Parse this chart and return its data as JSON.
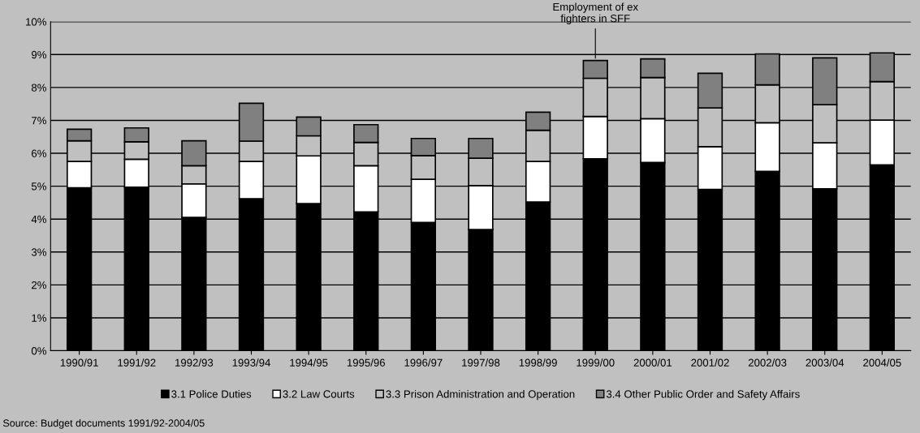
{
  "chart_data": {
    "type": "bar",
    "stacked": true,
    "categories": [
      "1990/91",
      "1991/92",
      "1992/93",
      "1993/94",
      "1994/95",
      "1995/96",
      "1996/97",
      "1997/98",
      "1998/99",
      "1999/00",
      "2000/01",
      "2001/02",
      "2002/03",
      "2003/04",
      "2004/05"
    ],
    "series": [
      {
        "name": "3.1 Police Duties",
        "color": "#000000",
        "values": [
          4.95,
          4.97,
          4.05,
          4.62,
          4.47,
          4.22,
          3.9,
          3.68,
          4.52,
          5.83,
          5.72,
          4.9,
          5.45,
          4.92,
          5.65
        ]
      },
      {
        "name": "3.2 Law Courts",
        "color": "#ffffff",
        "values": [
          0.8,
          0.85,
          1.02,
          1.13,
          1.45,
          1.4,
          1.31,
          1.34,
          1.23,
          1.29,
          1.33,
          1.3,
          1.48,
          1.4,
          1.36
        ]
      },
      {
        "name": "3.3 Prison Administration and Operation",
        "color": "#c0c0c0",
        "values": [
          0.63,
          0.53,
          0.55,
          0.62,
          0.61,
          0.71,
          0.72,
          0.83,
          0.95,
          1.16,
          1.25,
          1.18,
          1.15,
          1.16,
          1.17
        ]
      },
      {
        "name": "3.4 Other Public Order and Safety Affairs",
        "color": "#808080",
        "values": [
          0.35,
          0.42,
          0.76,
          1.15,
          0.57,
          0.54,
          0.52,
          0.6,
          0.55,
          0.54,
          0.57,
          1.05,
          0.94,
          1.42,
          0.87
        ]
      }
    ],
    "ylim": [
      0,
      10
    ],
    "yticks": [
      {
        "value": 0,
        "label": "0%"
      },
      {
        "value": 1,
        "label": "1%"
      },
      {
        "value": 2,
        "label": "2%"
      },
      {
        "value": 3,
        "label": "3%"
      },
      {
        "value": 4,
        "label": "4%"
      },
      {
        "value": 5,
        "label": "5%"
      },
      {
        "value": 6,
        "label": "6%"
      },
      {
        "value": 7,
        "label": "7%"
      },
      {
        "value": 8,
        "label": "8%"
      },
      {
        "value": 9,
        "label": "9%"
      },
      {
        "value": 10,
        "label": "10%"
      }
    ],
    "grid": "y",
    "legend": "bottom",
    "annotations": [
      {
        "text": "Employment of ex\nfighters in SFF",
        "x": "1999/00",
        "y": 8.82
      },
      "Source: Budget documents 1991/92-2004/05"
    ]
  }
}
